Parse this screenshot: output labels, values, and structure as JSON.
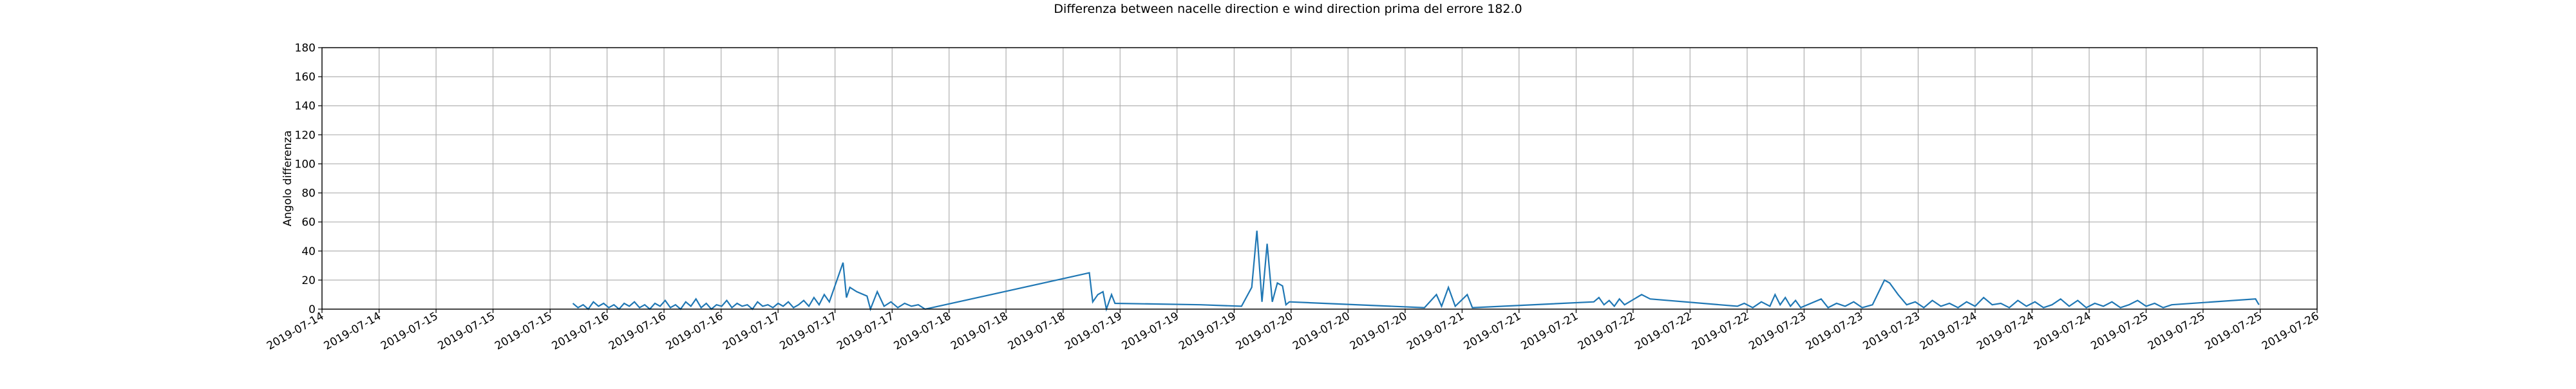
{
  "chart_data": {
    "type": "line",
    "title": "Differenza between nacelle direction e wind direction prima del errore 182.0",
    "ylabel": "Angolo differenza",
    "color": "#1f77b4",
    "grid": true,
    "ylim": [
      0,
      180
    ],
    "yticks": [
      0,
      20,
      40,
      60,
      80,
      100,
      120,
      140,
      160,
      180
    ],
    "xlim": [
      14.333,
      26.0
    ],
    "xticks": [
      {
        "value": 14.333,
        "label": "2019-07-14"
      },
      {
        "value": 14.667,
        "label": "2019-07-14"
      },
      {
        "value": 15.0,
        "label": "2019-07-15"
      },
      {
        "value": 15.333,
        "label": "2019-07-15"
      },
      {
        "value": 15.667,
        "label": "2019-07-15"
      },
      {
        "value": 16.0,
        "label": "2019-07-16"
      },
      {
        "value": 16.333,
        "label": "2019-07-16"
      },
      {
        "value": 16.667,
        "label": "2019-07-16"
      },
      {
        "value": 17.0,
        "label": "2019-07-17"
      },
      {
        "value": 17.333,
        "label": "2019-07-17"
      },
      {
        "value": 17.667,
        "label": "2019-07-17"
      },
      {
        "value": 18.0,
        "label": "2019-07-18"
      },
      {
        "value": 18.333,
        "label": "2019-07-18"
      },
      {
        "value": 18.667,
        "label": "2019-07-18"
      },
      {
        "value": 19.0,
        "label": "2019-07-19"
      },
      {
        "value": 19.333,
        "label": "2019-07-19"
      },
      {
        "value": 19.667,
        "label": "2019-07-19"
      },
      {
        "value": 20.0,
        "label": "2019-07-20"
      },
      {
        "value": 20.333,
        "label": "2019-07-20"
      },
      {
        "value": 20.667,
        "label": "2019-07-20"
      },
      {
        "value": 21.0,
        "label": "2019-07-21"
      },
      {
        "value": 21.333,
        "label": "2019-07-21"
      },
      {
        "value": 21.667,
        "label": "2019-07-21"
      },
      {
        "value": 22.0,
        "label": "2019-07-22"
      },
      {
        "value": 22.333,
        "label": "2019-07-22"
      },
      {
        "value": 22.667,
        "label": "2019-07-22"
      },
      {
        "value": 23.0,
        "label": "2019-07-23"
      },
      {
        "value": 23.333,
        "label": "2019-07-23"
      },
      {
        "value": 23.667,
        "label": "2019-07-23"
      },
      {
        "value": 24.0,
        "label": "2019-07-24"
      },
      {
        "value": 24.333,
        "label": "2019-07-24"
      },
      {
        "value": 24.667,
        "label": "2019-07-24"
      },
      {
        "value": 25.0,
        "label": "2019-07-25"
      },
      {
        "value": 25.333,
        "label": "2019-07-25"
      },
      {
        "value": 25.667,
        "label": "2019-07-25"
      },
      {
        "value": 26.0,
        "label": "2019-07-26"
      }
    ],
    "x": [
      15.8,
      15.83,
      15.86,
      15.89,
      15.92,
      15.95,
      15.98,
      16.01,
      16.04,
      16.07,
      16.1,
      16.13,
      16.16,
      16.19,
      16.22,
      16.25,
      16.28,
      16.31,
      16.34,
      16.37,
      16.4,
      16.43,
      16.46,
      16.49,
      16.52,
      16.55,
      16.58,
      16.61,
      16.64,
      16.67,
      16.7,
      16.73,
      16.76,
      16.79,
      16.82,
      16.85,
      16.88,
      16.91,
      16.94,
      16.97,
      17.0,
      17.03,
      17.06,
      17.09,
      17.12,
      17.15,
      17.18,
      17.21,
      17.24,
      17.27,
      17.3,
      17.38,
      17.4,
      17.42,
      17.46,
      17.52,
      17.54,
      17.58,
      17.62,
      17.66,
      17.7,
      17.74,
      17.78,
      17.82,
      17.86,
      17.9,
      18.82,
      18.84,
      18.87,
      18.9,
      18.92,
      18.95,
      18.97,
      19.47,
      19.71,
      19.77,
      19.8,
      19.83,
      19.86,
      19.89,
      19.92,
      19.95,
      19.97,
      19.99,
      20.78,
      20.85,
      20.88,
      20.92,
      20.96,
      21.03,
      21.06,
      21.77,
      21.8,
      21.83,
      21.86,
      21.89,
      21.92,
      21.95,
      22.05,
      22.1,
      22.61,
      22.65,
      22.7,
      22.75,
      22.8,
      22.83,
      22.86,
      22.89,
      22.92,
      22.95,
      22.98,
      23.1,
      23.14,
      23.19,
      23.24,
      23.29,
      23.34,
      23.4,
      23.47,
      23.5,
      23.55,
      23.6,
      23.65,
      23.7,
      23.75,
      23.8,
      23.85,
      23.9,
      23.95,
      24.0,
      24.05,
      24.1,
      24.15,
      24.2,
      24.25,
      24.3,
      24.35,
      24.4,
      24.45,
      24.5,
      24.55,
      24.6,
      24.65,
      24.7,
      24.75,
      24.8,
      24.85,
      24.9,
      24.95,
      25.0,
      25.05,
      25.1,
      25.15,
      25.64,
      25.66
    ],
    "values": [
      4,
      1,
      3,
      0,
      5,
      2,
      4,
      1,
      3,
      0,
      4,
      2,
      5,
      1,
      3,
      0,
      4,
      2,
      6,
      1,
      3,
      0,
      5,
      2,
      7,
      1,
      4,
      0,
      3,
      2,
      6,
      1,
      4,
      2,
      3,
      0,
      5,
      2,
      3,
      1,
      4,
      2,
      5,
      1,
      3,
      6,
      2,
      8,
      3,
      10,
      5,
      32,
      8,
      15,
      12,
      9,
      0,
      12,
      2,
      5,
      1,
      4,
      2,
      3,
      0,
      1,
      25,
      5,
      10,
      12,
      0,
      10,
      4,
      3,
      2,
      15,
      54,
      5,
      45,
      5,
      18,
      16,
      3,
      5,
      1,
      10,
      2,
      15,
      2,
      10,
      1,
      5,
      8,
      3,
      6,
      2,
      7,
      3,
      10,
      7,
      2,
      4,
      1,
      5,
      2,
      10,
      3,
      8,
      2,
      6,
      1,
      7,
      1,
      4,
      2,
      5,
      1,
      3,
      20,
      18,
      10,
      3,
      5,
      1,
      6,
      2,
      4,
      1,
      5,
      2,
      8,
      3,
      4,
      1,
      6,
      2,
      5,
      1,
      3,
      7,
      2,
      6,
      1,
      4,
      2,
      5,
      1,
      3,
      6,
      2,
      4,
      1,
      3,
      7,
      3
    ]
  }
}
